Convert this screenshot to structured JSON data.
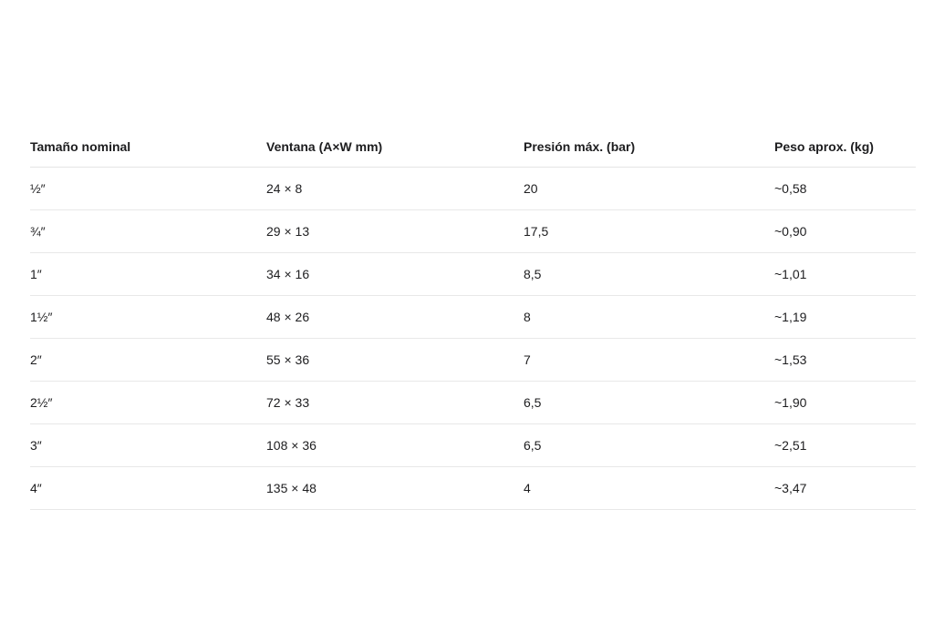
{
  "table": {
    "headers": [
      "Tamaño nominal",
      "Ventana (A×W mm)",
      "Presión máx. (bar)",
      "Peso aprox. (kg)"
    ],
    "rows": [
      [
        "½″",
        "24 × 8",
        "20",
        "~0,58"
      ],
      [
        "¾″",
        "29 × 13",
        "17,5",
        "~0,90"
      ],
      [
        "1″",
        "34 × 16",
        "8,5",
        "~1,01"
      ],
      [
        "1½″",
        "48 × 26",
        "8",
        "~1,19"
      ],
      [
        "2″",
        "55 × 36",
        "7",
        "~1,53"
      ],
      [
        "2½″",
        "72 × 33",
        "6,5",
        "~1,90"
      ],
      [
        "3″",
        "108 × 36",
        "6,5",
        "~2,51"
      ],
      [
        "4″",
        "135 × 48",
        "4",
        "~3,47"
      ]
    ]
  }
}
